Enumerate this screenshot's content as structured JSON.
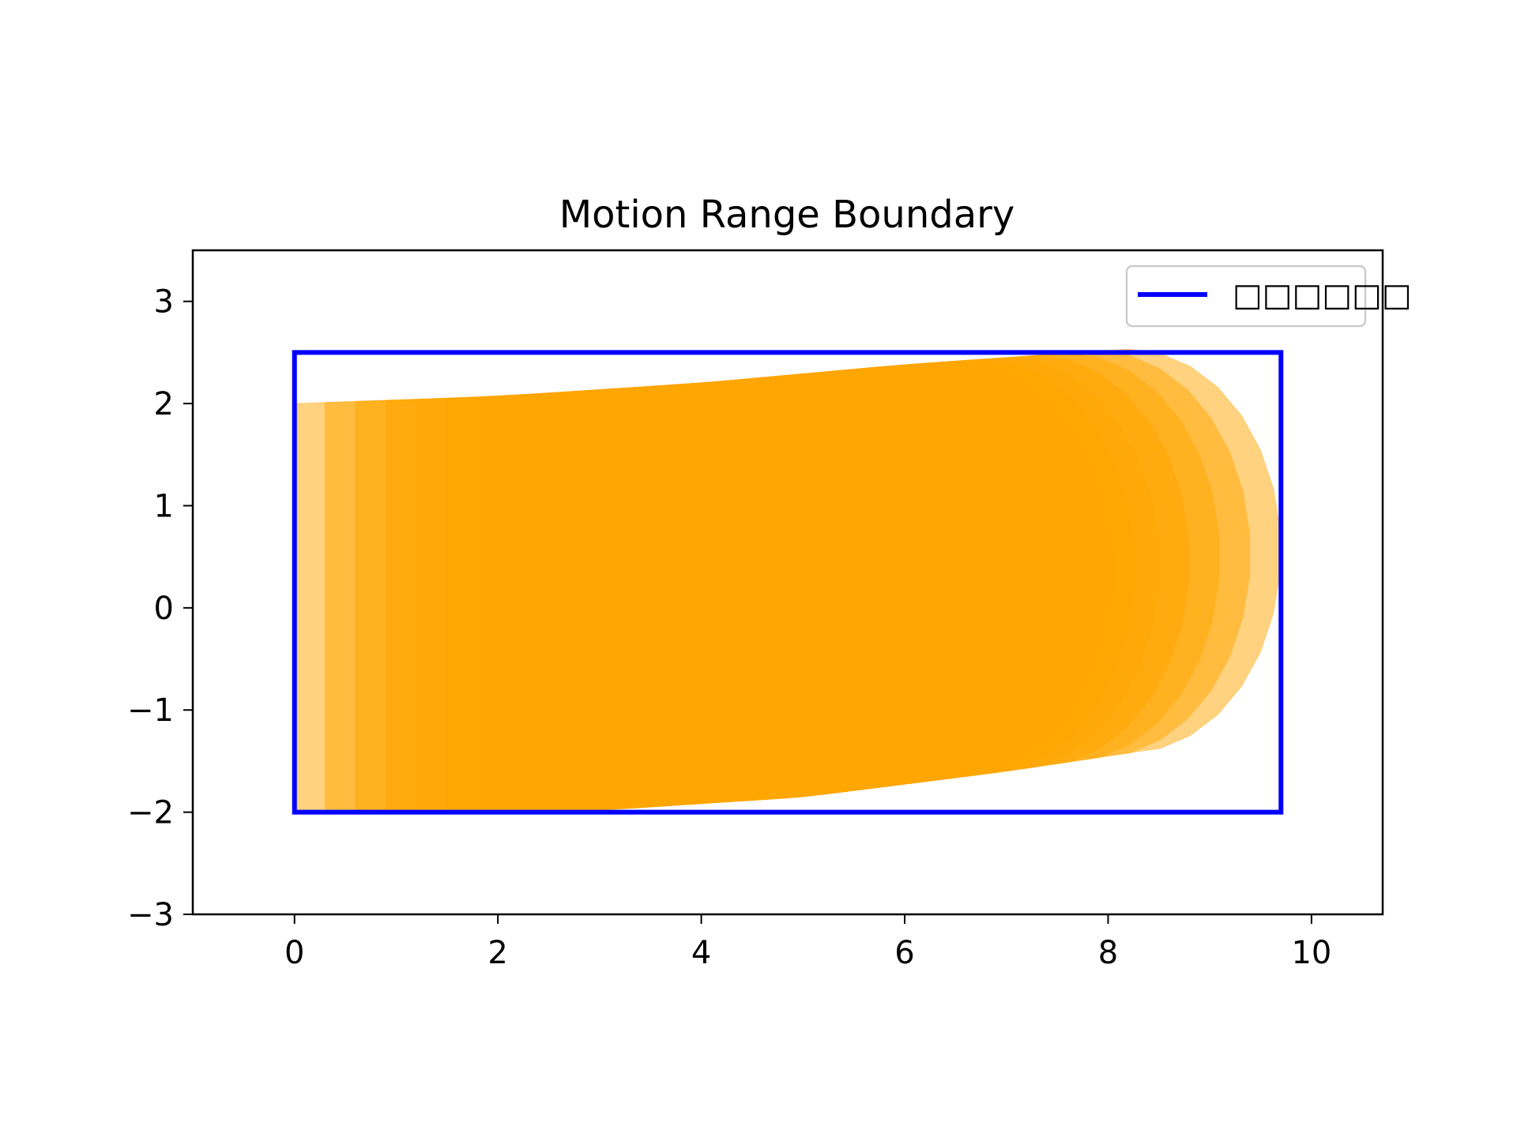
{
  "chart_data": {
    "type": "area",
    "title": "Motion Range Boundary",
    "xlabel": "",
    "ylabel": "",
    "xlim": [
      -1.0,
      10.7
    ],
    "ylim": [
      -3,
      3.5
    ],
    "x_ticks": [
      0,
      2,
      4,
      6,
      8,
      10
    ],
    "y_ticks": [
      3,
      2,
      1,
      0,
      -1,
      -2,
      -3
    ],
    "grid": false,
    "legend": {
      "placement": "top-right",
      "entries": [
        {
          "label": "□□□□□□",
          "color": "#0000ff"
        }
      ]
    },
    "boundary": {
      "color": "#0000ff",
      "rect": {
        "x0": 0,
        "x1": 9.7,
        "y0": -2,
        "y1": 2.5
      }
    },
    "swept_region": {
      "color": "#ffa500",
      "opacity": 0.5,
      "layers": [
        {
          "x_offset": 0.0,
          "tip_x": 9.7
        },
        {
          "x_offset": 0.3,
          "tip_x": 9.4
        },
        {
          "x_offset": 0.6,
          "tip_x": 9.1
        },
        {
          "x_offset": 0.9,
          "tip_x": 8.8
        },
        {
          "x_offset": 1.2,
          "tip_x": 8.5
        },
        {
          "x_offset": 1.5,
          "tip_x": 8.25
        },
        {
          "x_offset": 1.8,
          "tip_x": 8.05
        },
        {
          "x_offset": 2.1,
          "tip_x": 7.85
        },
        {
          "x_offset": 2.4,
          "tip_x": 7.65
        },
        {
          "x_offset": 2.7,
          "tip_x": 7.45
        },
        {
          "x_offset": 3.0,
          "tip_x": 7.3
        }
      ],
      "upper_edge": [
        [
          0,
          2.0
        ],
        [
          2,
          2.07
        ],
        [
          4,
          2.2
        ],
        [
          6,
          2.38
        ],
        [
          7,
          2.45
        ]
      ],
      "lower_edge": [
        [
          0,
          -2.0
        ],
        [
          3,
          -1.98
        ],
        [
          5,
          -1.85
        ],
        [
          7,
          -1.6
        ],
        [
          8,
          -1.45
        ]
      ]
    }
  }
}
